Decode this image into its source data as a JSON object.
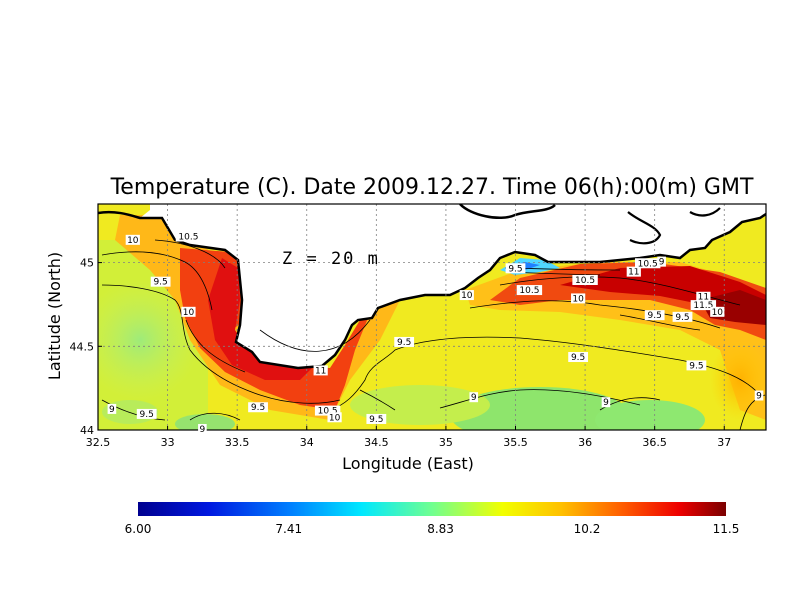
{
  "map": {
    "title": "Temperature (C). Date 2009.12.27. Time 06(h):00(m) GMT",
    "depth_label": "Z = 20 m",
    "xlabel": "Longitude (East)",
    "ylabel": "Latitude (North)",
    "lon_ticks": [
      "32.5",
      "33",
      "33.5",
      "34",
      "34.5",
      "35",
      "35.5",
      "36",
      "36.5",
      "37"
    ],
    "lat_ticks": [
      "44",
      "44.5",
      "45"
    ],
    "grid": true,
    "colors": {
      "land": "#ffffff",
      "coast": "#000000",
      "grid": "#808080"
    }
  },
  "chart_data": {
    "type": "heatmap",
    "title": "Temperature (C). Date 2009.12.27. Time 06(h):00(m) GMT",
    "xlabel": "Longitude (East)",
    "ylabel": "Latitude (North)",
    "xlim": [
      32.5,
      37.3
    ],
    "ylim": [
      44.0,
      45.35
    ],
    "contour_labels": [
      {
        "lon": 32.75,
        "lat": 45.13,
        "value": "10"
      },
      {
        "lon": 33.15,
        "lat": 45.15,
        "value": "10.5"
      },
      {
        "lon": 32.95,
        "lat": 44.88,
        "value": "9.5"
      },
      {
        "lon": 33.15,
        "lat": 44.7,
        "value": "10"
      },
      {
        "lon": 32.6,
        "lat": 44.12,
        "value": "9"
      },
      {
        "lon": 32.85,
        "lat": 44.09,
        "value": "9.5"
      },
      {
        "lon": 33.25,
        "lat": 44.0,
        "value": "9"
      },
      {
        "lon": 33.65,
        "lat": 44.13,
        "value": "9.5"
      },
      {
        "lon": 34.1,
        "lat": 44.35,
        "value": "11"
      },
      {
        "lon": 34.15,
        "lat": 44.11,
        "value": "10.5"
      },
      {
        "lon": 34.2,
        "lat": 44.07,
        "value": "10"
      },
      {
        "lon": 34.5,
        "lat": 44.06,
        "value": "9.5"
      },
      {
        "lon": 34.7,
        "lat": 44.52,
        "value": "9.5"
      },
      {
        "lon": 35.15,
        "lat": 44.8,
        "value": "10"
      },
      {
        "lon": 35.5,
        "lat": 44.96,
        "value": "9.5"
      },
      {
        "lon": 35.6,
        "lat": 44.83,
        "value": "10.5"
      },
      {
        "lon": 35.95,
        "lat": 44.78,
        "value": "10"
      },
      {
        "lon": 36.0,
        "lat": 44.89,
        "value": "10.5"
      },
      {
        "lon": 36.35,
        "lat": 44.94,
        "value": "11"
      },
      {
        "lon": 36.45,
        "lat": 44.99,
        "value": "10.5"
      },
      {
        "lon": 36.55,
        "lat": 45.0,
        "value": "9"
      },
      {
        "lon": 36.5,
        "lat": 44.68,
        "value": "9.5"
      },
      {
        "lon": 36.85,
        "lat": 44.79,
        "value": "11"
      },
      {
        "lon": 36.85,
        "lat": 44.74,
        "value": "11.5"
      },
      {
        "lon": 36.95,
        "lat": 44.7,
        "value": "10"
      },
      {
        "lon": 36.7,
        "lat": 44.67,
        "value": "9.5"
      },
      {
        "lon": 35.95,
        "lat": 44.43,
        "value": "9.5"
      },
      {
        "lon": 35.2,
        "lat": 44.19,
        "value": "9"
      },
      {
        "lon": 36.15,
        "lat": 44.16,
        "value": "9"
      },
      {
        "lon": 36.8,
        "lat": 44.38,
        "value": "9.5"
      },
      {
        "lon": 37.25,
        "lat": 44.2,
        "value": "9"
      }
    ],
    "colorbar": {
      "min": 6.0,
      "max": 11.5,
      "tick_labels": [
        "6.00",
        "7.41",
        "8.83",
        "10.2",
        "11.5"
      ]
    }
  }
}
